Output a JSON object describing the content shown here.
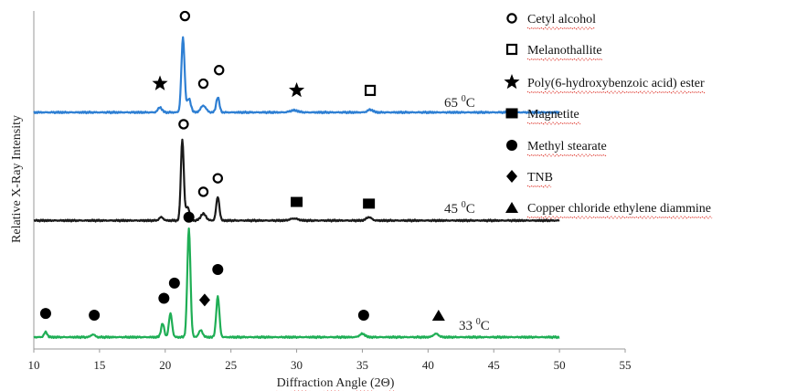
{
  "chart_data": {
    "type": "line",
    "xlabel": "Diffraction Angle (2Θ)",
    "ylabel": "Relative X-Ray Intensity",
    "xlim": [
      10,
      55
    ],
    "xticks": [
      10,
      15,
      20,
      25,
      30,
      35,
      40,
      45,
      50,
      55
    ],
    "x_range_plotted": [
      10,
      50
    ],
    "colors": {
      "65": "#2e7fd3",
      "45": "#1a1a1a",
      "33": "#1fae55"
    },
    "series": [
      {
        "key": "65",
        "label_base": "65 ",
        "label_sup": "0",
        "label_unit": "C",
        "offset": 0.7,
        "peaks": [
          {
            "x": 19.6,
            "h": 0.015,
            "w": 0.15
          },
          {
            "x": 21.35,
            "h": 0.22,
            "w": 0.12
          },
          {
            "x": 21.8,
            "h": 0.04,
            "w": 0.15
          },
          {
            "x": 22.9,
            "h": 0.02,
            "w": 0.2
          },
          {
            "x": 24.0,
            "h": 0.045,
            "w": 0.12
          },
          {
            "x": 29.8,
            "h": 0.006,
            "w": 0.3
          },
          {
            "x": 35.6,
            "h": 0.008,
            "w": 0.2
          }
        ],
        "markers": [
          {
            "x": 19.6,
            "y": 0.785,
            "shape": "star"
          },
          {
            "x": 21.5,
            "y": 0.985,
            "shape": "circle-open"
          },
          {
            "x": 22.9,
            "y": 0.785,
            "shape": "circle-open"
          },
          {
            "x": 24.1,
            "y": 0.825,
            "shape": "circle-open"
          },
          {
            "x": 30.0,
            "y": 0.765,
            "shape": "star"
          },
          {
            "x": 35.6,
            "y": 0.765,
            "shape": "square-open"
          }
        ]
      },
      {
        "key": "45",
        "label_base": "45 ",
        "label_sup": "0",
        "label_unit": "C",
        "offset": 0.38,
        "peaks": [
          {
            "x": 19.7,
            "h": 0.01,
            "w": 0.15
          },
          {
            "x": 21.3,
            "h": 0.24,
            "w": 0.11
          },
          {
            "x": 21.7,
            "h": 0.04,
            "w": 0.15
          },
          {
            "x": 22.9,
            "h": 0.02,
            "w": 0.2
          },
          {
            "x": 24.0,
            "h": 0.07,
            "w": 0.12
          },
          {
            "x": 29.8,
            "h": 0.006,
            "w": 0.3
          },
          {
            "x": 35.5,
            "h": 0.01,
            "w": 0.2
          }
        ],
        "markers": [
          {
            "x": 21.4,
            "y": 0.665,
            "shape": "circle-open"
          },
          {
            "x": 22.9,
            "y": 0.465,
            "shape": "circle-open"
          },
          {
            "x": 24.0,
            "y": 0.505,
            "shape": "circle-open"
          },
          {
            "x": 30.0,
            "y": 0.435,
            "shape": "square-filled"
          },
          {
            "x": 35.5,
            "y": 0.43,
            "shape": "square-filled"
          }
        ]
      },
      {
        "key": "33",
        "label_base": "33 ",
        "label_sup": "0",
        "label_unit": "C",
        "offset": 0.035,
        "peaks": [
          {
            "x": 10.9,
            "h": 0.015,
            "w": 0.12
          },
          {
            "x": 14.5,
            "h": 0.008,
            "w": 0.15
          },
          {
            "x": 19.8,
            "h": 0.04,
            "w": 0.12
          },
          {
            "x": 20.4,
            "h": 0.07,
            "w": 0.12
          },
          {
            "x": 21.8,
            "h": 0.32,
            "w": 0.12
          },
          {
            "x": 22.7,
            "h": 0.02,
            "w": 0.15
          },
          {
            "x": 24.0,
            "h": 0.12,
            "w": 0.12
          },
          {
            "x": 35.0,
            "h": 0.01,
            "w": 0.2
          },
          {
            "x": 40.6,
            "h": 0.01,
            "w": 0.2
          }
        ],
        "markers": [
          {
            "x": 10.9,
            "y": 0.105,
            "shape": "circle-filled"
          },
          {
            "x": 14.6,
            "y": 0.1,
            "shape": "circle-filled"
          },
          {
            "x": 19.9,
            "y": 0.15,
            "shape": "circle-filled"
          },
          {
            "x": 20.7,
            "y": 0.195,
            "shape": "circle-filled"
          },
          {
            "x": 21.8,
            "y": 0.39,
            "shape": "circle-filled"
          },
          {
            "x": 23.0,
            "y": 0.145,
            "shape": "diamond"
          },
          {
            "x": 24.0,
            "y": 0.235,
            "shape": "circle-filled"
          },
          {
            "x": 35.1,
            "y": 0.1,
            "shape": "circle-filled"
          },
          {
            "x": 40.8,
            "y": 0.1,
            "shape": "triangle"
          }
        ]
      }
    ],
    "legend": [
      {
        "shape": "circle-open",
        "label": "Cetyl alcohol"
      },
      {
        "shape": "square-open",
        "label": "Melanothallite"
      },
      {
        "shape": "star",
        "label": "Poly(6-hydroxybenzoic acid) ester"
      },
      {
        "shape": "square-filled",
        "label": "Magnetite"
      },
      {
        "shape": "circle-filled",
        "label": "Methyl stearate"
      },
      {
        "shape": "diamond",
        "label": "TNB"
      },
      {
        "shape": "triangle",
        "label": "Copper chloride ethylene diammine"
      }
    ],
    "legend_placement": "right"
  }
}
